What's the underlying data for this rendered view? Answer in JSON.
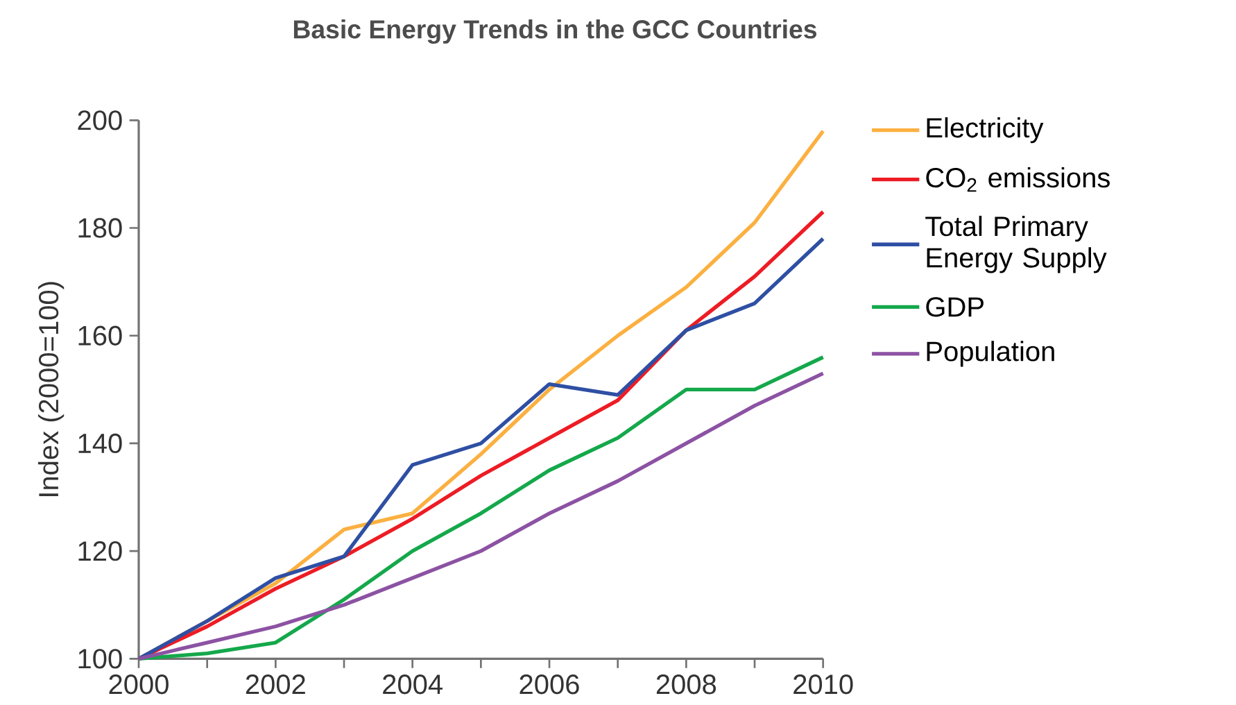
{
  "chart_data": {
    "type": "line",
    "title": "Basic Energy Trends in the GCC Countries",
    "ylabel": "Index (2000=100)",
    "x": [
      2000,
      2001,
      2002,
      2003,
      2004,
      2005,
      2006,
      2007,
      2008,
      2009,
      2010
    ],
    "series": [
      {
        "name": "Electricity",
        "color": "#fbb040",
        "values": [
          100,
          107,
          114,
          124,
          127,
          138,
          150,
          160,
          169,
          181,
          198
        ]
      },
      {
        "name": "CO$_{2}$ emissions",
        "color": "#ed1c24",
        "values": [
          100,
          106,
          113,
          119,
          126,
          134,
          141,
          148,
          161,
          171,
          183
        ]
      },
      {
        "name": "Total Primary Energy Supply",
        "color": "#2e4fa3",
        "values": [
          100,
          107,
          115,
          119,
          136,
          140,
          151,
          149,
          161,
          166,
          178
        ]
      },
      {
        "name": "GDP",
        "color": "#14a84b",
        "values": [
          100,
          101,
          103,
          111,
          120,
          127,
          135,
          141,
          150,
          150,
          156
        ]
      },
      {
        "name": "Population",
        "color": "#8c52a3",
        "values": [
          100,
          103,
          106,
          110,
          115,
          120,
          127,
          133,
          140,
          147,
          153
        ]
      }
    ],
    "xlim": [
      2000,
      2010
    ],
    "ylim": [
      100,
      200
    ],
    "xticks": [
      2000,
      {
        "value": 2001,
        "label": null
      },
      2002,
      {
        "value": 2003,
        "label": null
      },
      2004,
      {
        "value": 2005,
        "label": null
      },
      2006,
      {
        "value": 2007,
        "label": null
      },
      2008,
      {
        "value": 2009,
        "label": null
      },
      2010
    ],
    "yticks": [
      100,
      120,
      140,
      160,
      180,
      200
    ],
    "legend": "right",
    "grid": false,
    "marker": "none",
    "line_style": "solid"
  }
}
